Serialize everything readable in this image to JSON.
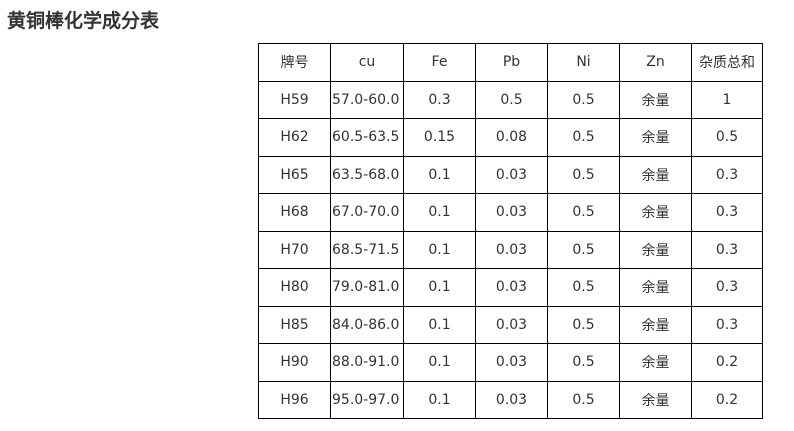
{
  "title": "黄铜棒化学成分表",
  "headers": [
    "牌号",
    "cu",
    "Fe",
    "Pb",
    "Ni",
    "Zn",
    "杂质总和"
  ],
  "rows": [
    [
      "H59",
      "57.0-60.0",
      "0.3",
      "0.5",
      "0.5",
      "余量",
      "1"
    ],
    [
      "H62",
      "60.5-63.5",
      "0.15",
      "0.08",
      "0.5",
      "余量",
      "0.5"
    ],
    [
      "H65",
      "63.5-68.0",
      "0.1",
      "0.03",
      "0.5",
      "余量",
      "0.3"
    ],
    [
      "H68",
      "67.0-70.0",
      "0.1",
      "0.03",
      "0.5",
      "余量",
      "0.3"
    ],
    [
      "H70",
      "68.5-71.5",
      "0.1",
      "0.03",
      "0.5",
      "余量",
      "0.3"
    ],
    [
      "H80",
      "79.0-81.0",
      "0.1",
      "0.03",
      "0.5",
      "余量",
      "0.3"
    ],
    [
      "H85",
      "84.0-86.0",
      "0.1",
      "0.03",
      "0.5",
      "余量",
      "0.3"
    ],
    [
      "H90",
      "88.0-91.0",
      "0.1",
      "0.03",
      "0.5",
      "余量",
      "0.2"
    ],
    [
      "H96",
      "95.0-97.0",
      "0.1",
      "0.03",
      "0.5",
      "余量",
      "0.2"
    ]
  ]
}
